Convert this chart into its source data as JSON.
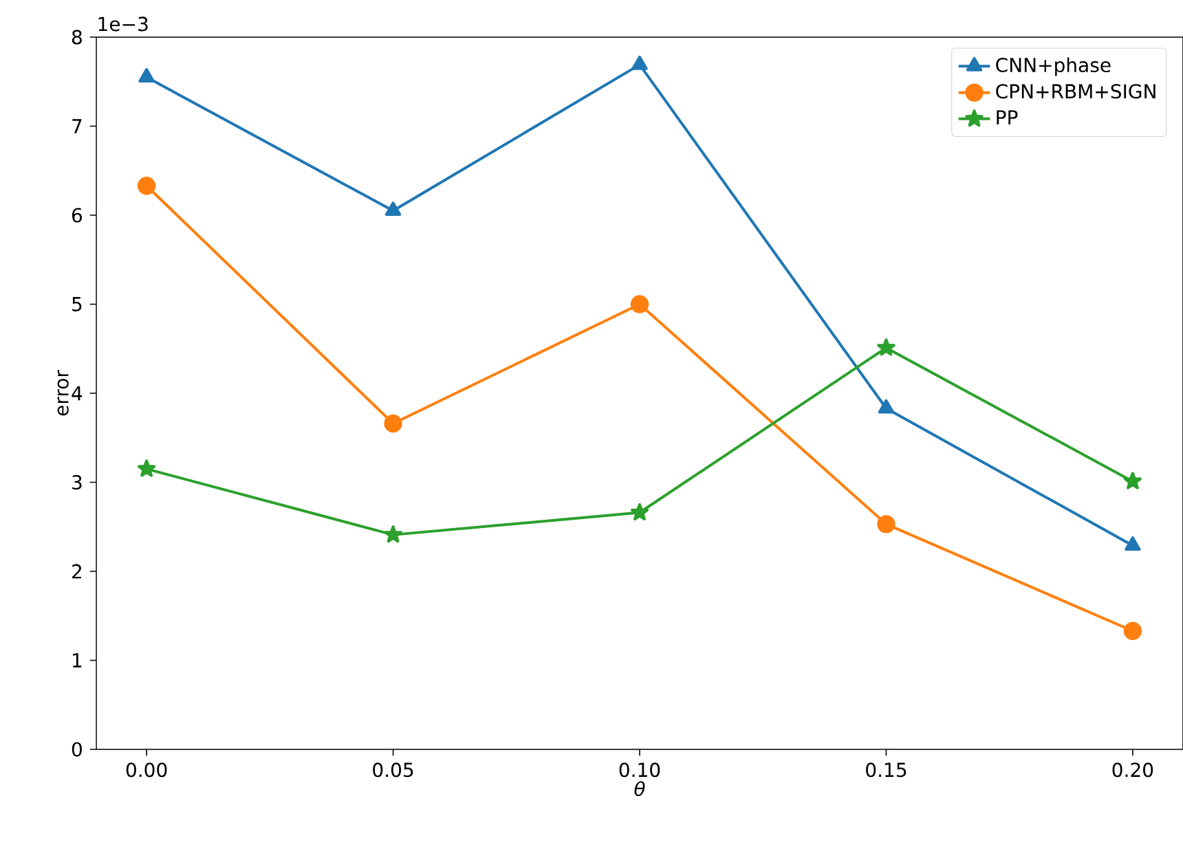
{
  "chart_data": {
    "type": "line",
    "xlabel": "θ",
    "ylabel": "error",
    "x": [
      0.0,
      0.05,
      0.1,
      0.15,
      0.2
    ],
    "series": [
      {
        "name": "CNN+phase",
        "color": "#1f77b4",
        "marker": "triangle",
        "values": [
          7.55,
          6.05,
          7.69,
          3.83,
          2.29
        ]
      },
      {
        "name": "CPN+RBM+SIGN",
        "color": "#ff7f0e",
        "marker": "circle",
        "values": [
          6.33,
          3.66,
          5.0,
          2.53,
          1.33
        ]
      },
      {
        "name": "PP",
        "color": "#2ca02c",
        "marker": "star",
        "values": [
          3.15,
          2.41,
          2.66,
          4.51,
          3.01
        ]
      }
    ],
    "xlim": [
      -0.0102,
      0.2102
    ],
    "ylim": [
      0,
      8
    ],
    "xticks": [
      {
        "value": 0.0,
        "label": "0.00"
      },
      {
        "value": 0.05,
        "label": "0.05"
      },
      {
        "value": 0.1,
        "label": "0.10"
      },
      {
        "value": 0.15,
        "label": "0.15"
      },
      {
        "value": 0.2,
        "label": "0.20"
      }
    ],
    "yticks": [
      0,
      1,
      2,
      3,
      4,
      5,
      6,
      7,
      8
    ],
    "annotations": [
      "1e−3"
    ],
    "grid": false,
    "legend": "top right",
    "line_style": "solid"
  }
}
